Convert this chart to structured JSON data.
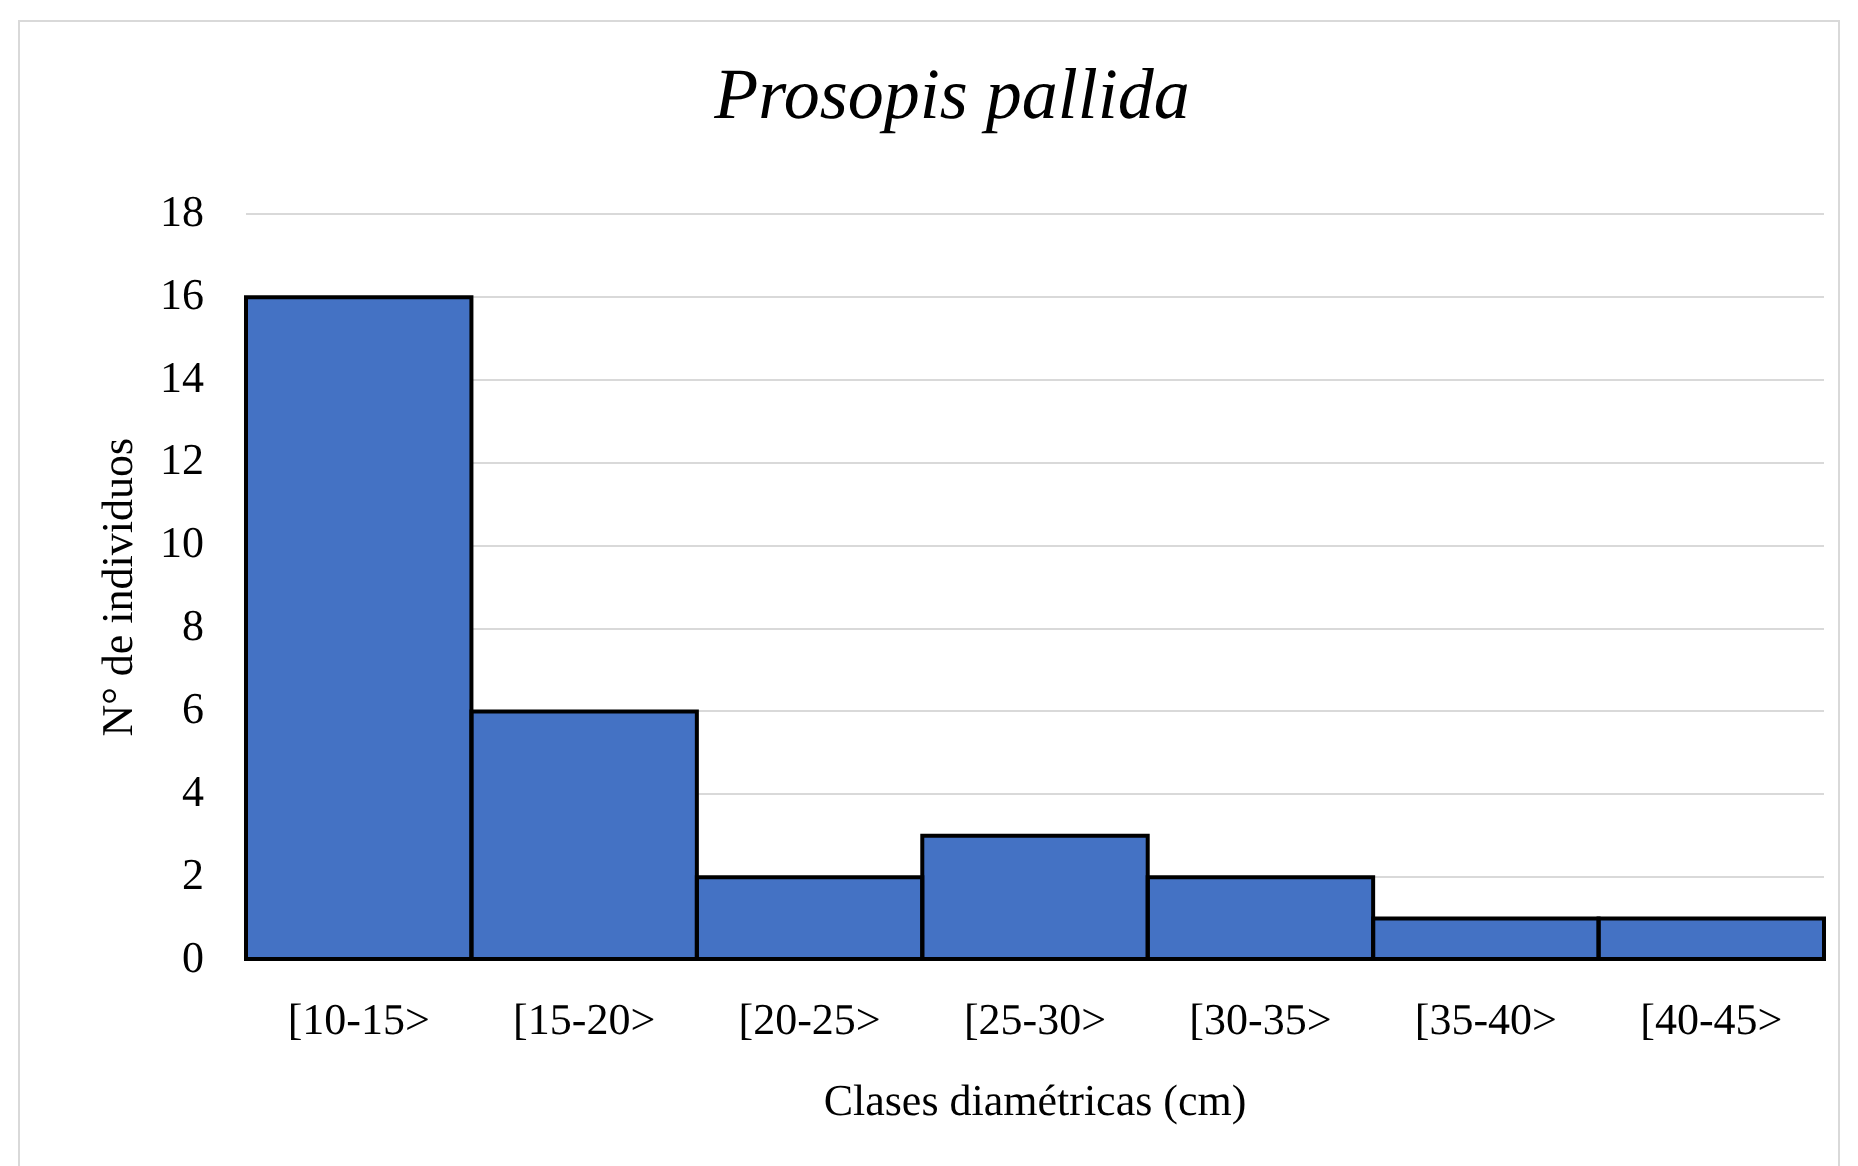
{
  "chart_data": {
    "type": "bar",
    "title": "Prosopis pallida",
    "xlabel": "Clases diamétricas (cm)",
    "ylabel": "N° de individuos",
    "categories": [
      "[10-15>",
      "[15-20>",
      "[20-25>",
      "[25-30>",
      "[30-35>",
      "[35-40>",
      "[40-45>"
    ],
    "values": [
      16,
      6,
      2,
      3,
      2,
      1,
      1
    ],
    "color": "#4472c4",
    "ylim": [
      0,
      18
    ],
    "yticks": [
      0,
      2,
      4,
      6,
      8,
      10,
      12,
      14,
      16,
      18
    ],
    "grid": "y",
    "legend": false
  }
}
